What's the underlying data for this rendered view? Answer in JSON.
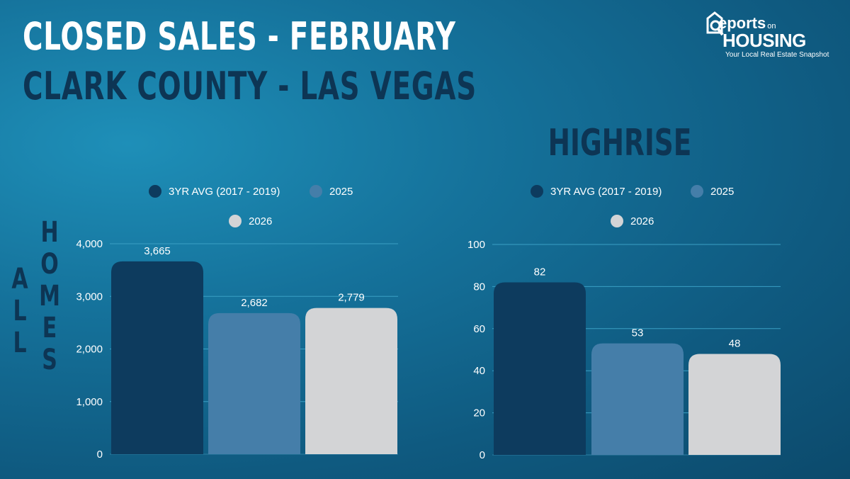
{
  "header": {
    "title": "CLOSED SALES  -  FEBRUARY",
    "subtitle": "CLARK COUNTY - LAS VEGAS"
  },
  "logo": {
    "line1": "eports",
    "line1_small": "on",
    "line2": "HOUSING",
    "tagline": "Your Local Real Estate Snapshot",
    "icon": "house-magnifier-icon"
  },
  "side_label": {
    "left_column": [
      "A",
      "L",
      "L"
    ],
    "right_column": [
      "H",
      "O",
      "M",
      "E",
      "S"
    ]
  },
  "colors": {
    "avg": "#0d3b5e",
    "y2025": "#457ea9",
    "y2026": "#d3d4d6",
    "grid": "#3a9fc4",
    "axis": "#2d7ea3"
  },
  "chart_data": [
    {
      "type": "bar",
      "title": "",
      "categories": [
        "3YR AVG (2017 - 2019)",
        "2025",
        "2026"
      ],
      "values": [
        3665,
        2682,
        2779
      ],
      "value_labels": [
        "3,665",
        "2,682",
        "2,779"
      ],
      "yticks": [
        0,
        1000,
        2000,
        3000,
        4000
      ],
      "ytick_labels": [
        "0",
        "1,000",
        "2,000",
        "3,000",
        "4,000"
      ],
      "ylim": [
        0,
        4000
      ],
      "grid": true,
      "legend": [
        "3YR AVG (2017 - 2019)",
        "2025",
        "2026"
      ],
      "legend_position": "top"
    },
    {
      "type": "bar",
      "title": "HIGHRISE",
      "categories": [
        "3YR AVG (2017 - 2019)",
        "2025",
        "2026"
      ],
      "values": [
        82,
        53,
        48
      ],
      "value_labels": [
        "82",
        "53",
        "48"
      ],
      "yticks": [
        0,
        20,
        40,
        60,
        80,
        100
      ],
      "ytick_labels": [
        "0",
        "20",
        "40",
        "60",
        "80",
        "100"
      ],
      "ylim": [
        0,
        100
      ],
      "grid": true,
      "legend": [
        "3YR AVG (2017 - 2019)",
        "2025",
        "2026"
      ],
      "legend_position": "top"
    }
  ]
}
